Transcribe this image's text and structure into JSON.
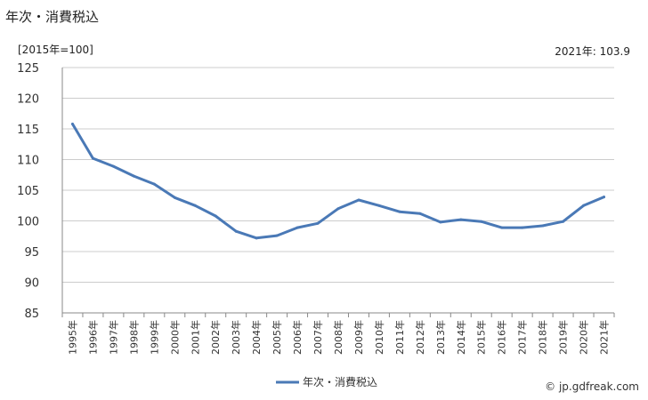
{
  "title": "年次・消費税込",
  "unit_label": "[2015年=100]",
  "latest_label": "2021年: 103.9",
  "credit": "© jp.gdfreak.com",
  "colors": {
    "line": "#4a79b6",
    "grid": "#cccccc",
    "axis": "#888888"
  },
  "chart_data": {
    "type": "line",
    "title": "年次・消費税込",
    "ylabel": "[2015年=100]",
    "xlabel": "",
    "ylim": [
      85,
      125
    ],
    "yticks": [
      85,
      90,
      95,
      100,
      105,
      110,
      115,
      120,
      125
    ],
    "grid": true,
    "legend_position": "bottom",
    "categories": [
      "1995年",
      "1996年",
      "1997年",
      "1998年",
      "1999年",
      "2000年",
      "2001年",
      "2002年",
      "2003年",
      "2004年",
      "2005年",
      "2006年",
      "2007年",
      "2008年",
      "2009年",
      "2010年",
      "2011年",
      "2012年",
      "2013年",
      "2014年",
      "2015年",
      "2016年",
      "2017年",
      "2018年",
      "2019年",
      "2020年",
      "2021年"
    ],
    "series": [
      {
        "name": "年次・消費税込",
        "values": [
          115.8,
          110.2,
          108.9,
          107.3,
          106.0,
          103.8,
          102.5,
          100.8,
          98.3,
          97.2,
          97.6,
          98.9,
          99.6,
          102.0,
          103.4,
          102.5,
          101.5,
          101.2,
          99.8,
          100.2,
          99.9,
          98.9,
          98.9,
          99.2,
          99.9,
          102.5,
          103.9
        ]
      }
    ]
  }
}
